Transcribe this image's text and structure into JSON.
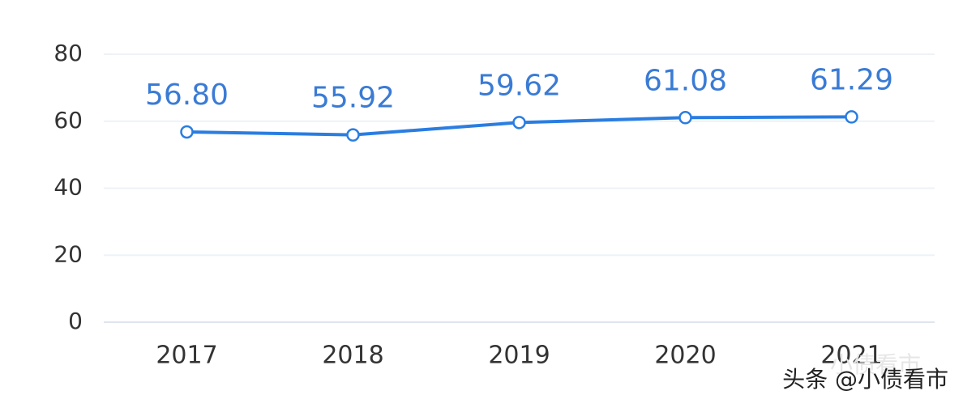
{
  "chart_data": {
    "type": "line",
    "categories": [
      "2017",
      "2018",
      "2019",
      "2020",
      "2021"
    ],
    "series": [
      {
        "color": "#2a7de1",
        "values": [
          56.8,
          55.92,
          59.62,
          61.08,
          61.29
        ],
        "value_labels": [
          "56.80",
          "55.92",
          "59.62",
          "61.08",
          "61.29"
        ]
      }
    ],
    "ylim": [
      0,
      80
    ],
    "yticks": [
      0,
      20,
      40,
      60,
      80
    ],
    "grid": true,
    "annotations": [
      "头条 @小债看市",
      "小债看市"
    ]
  }
}
